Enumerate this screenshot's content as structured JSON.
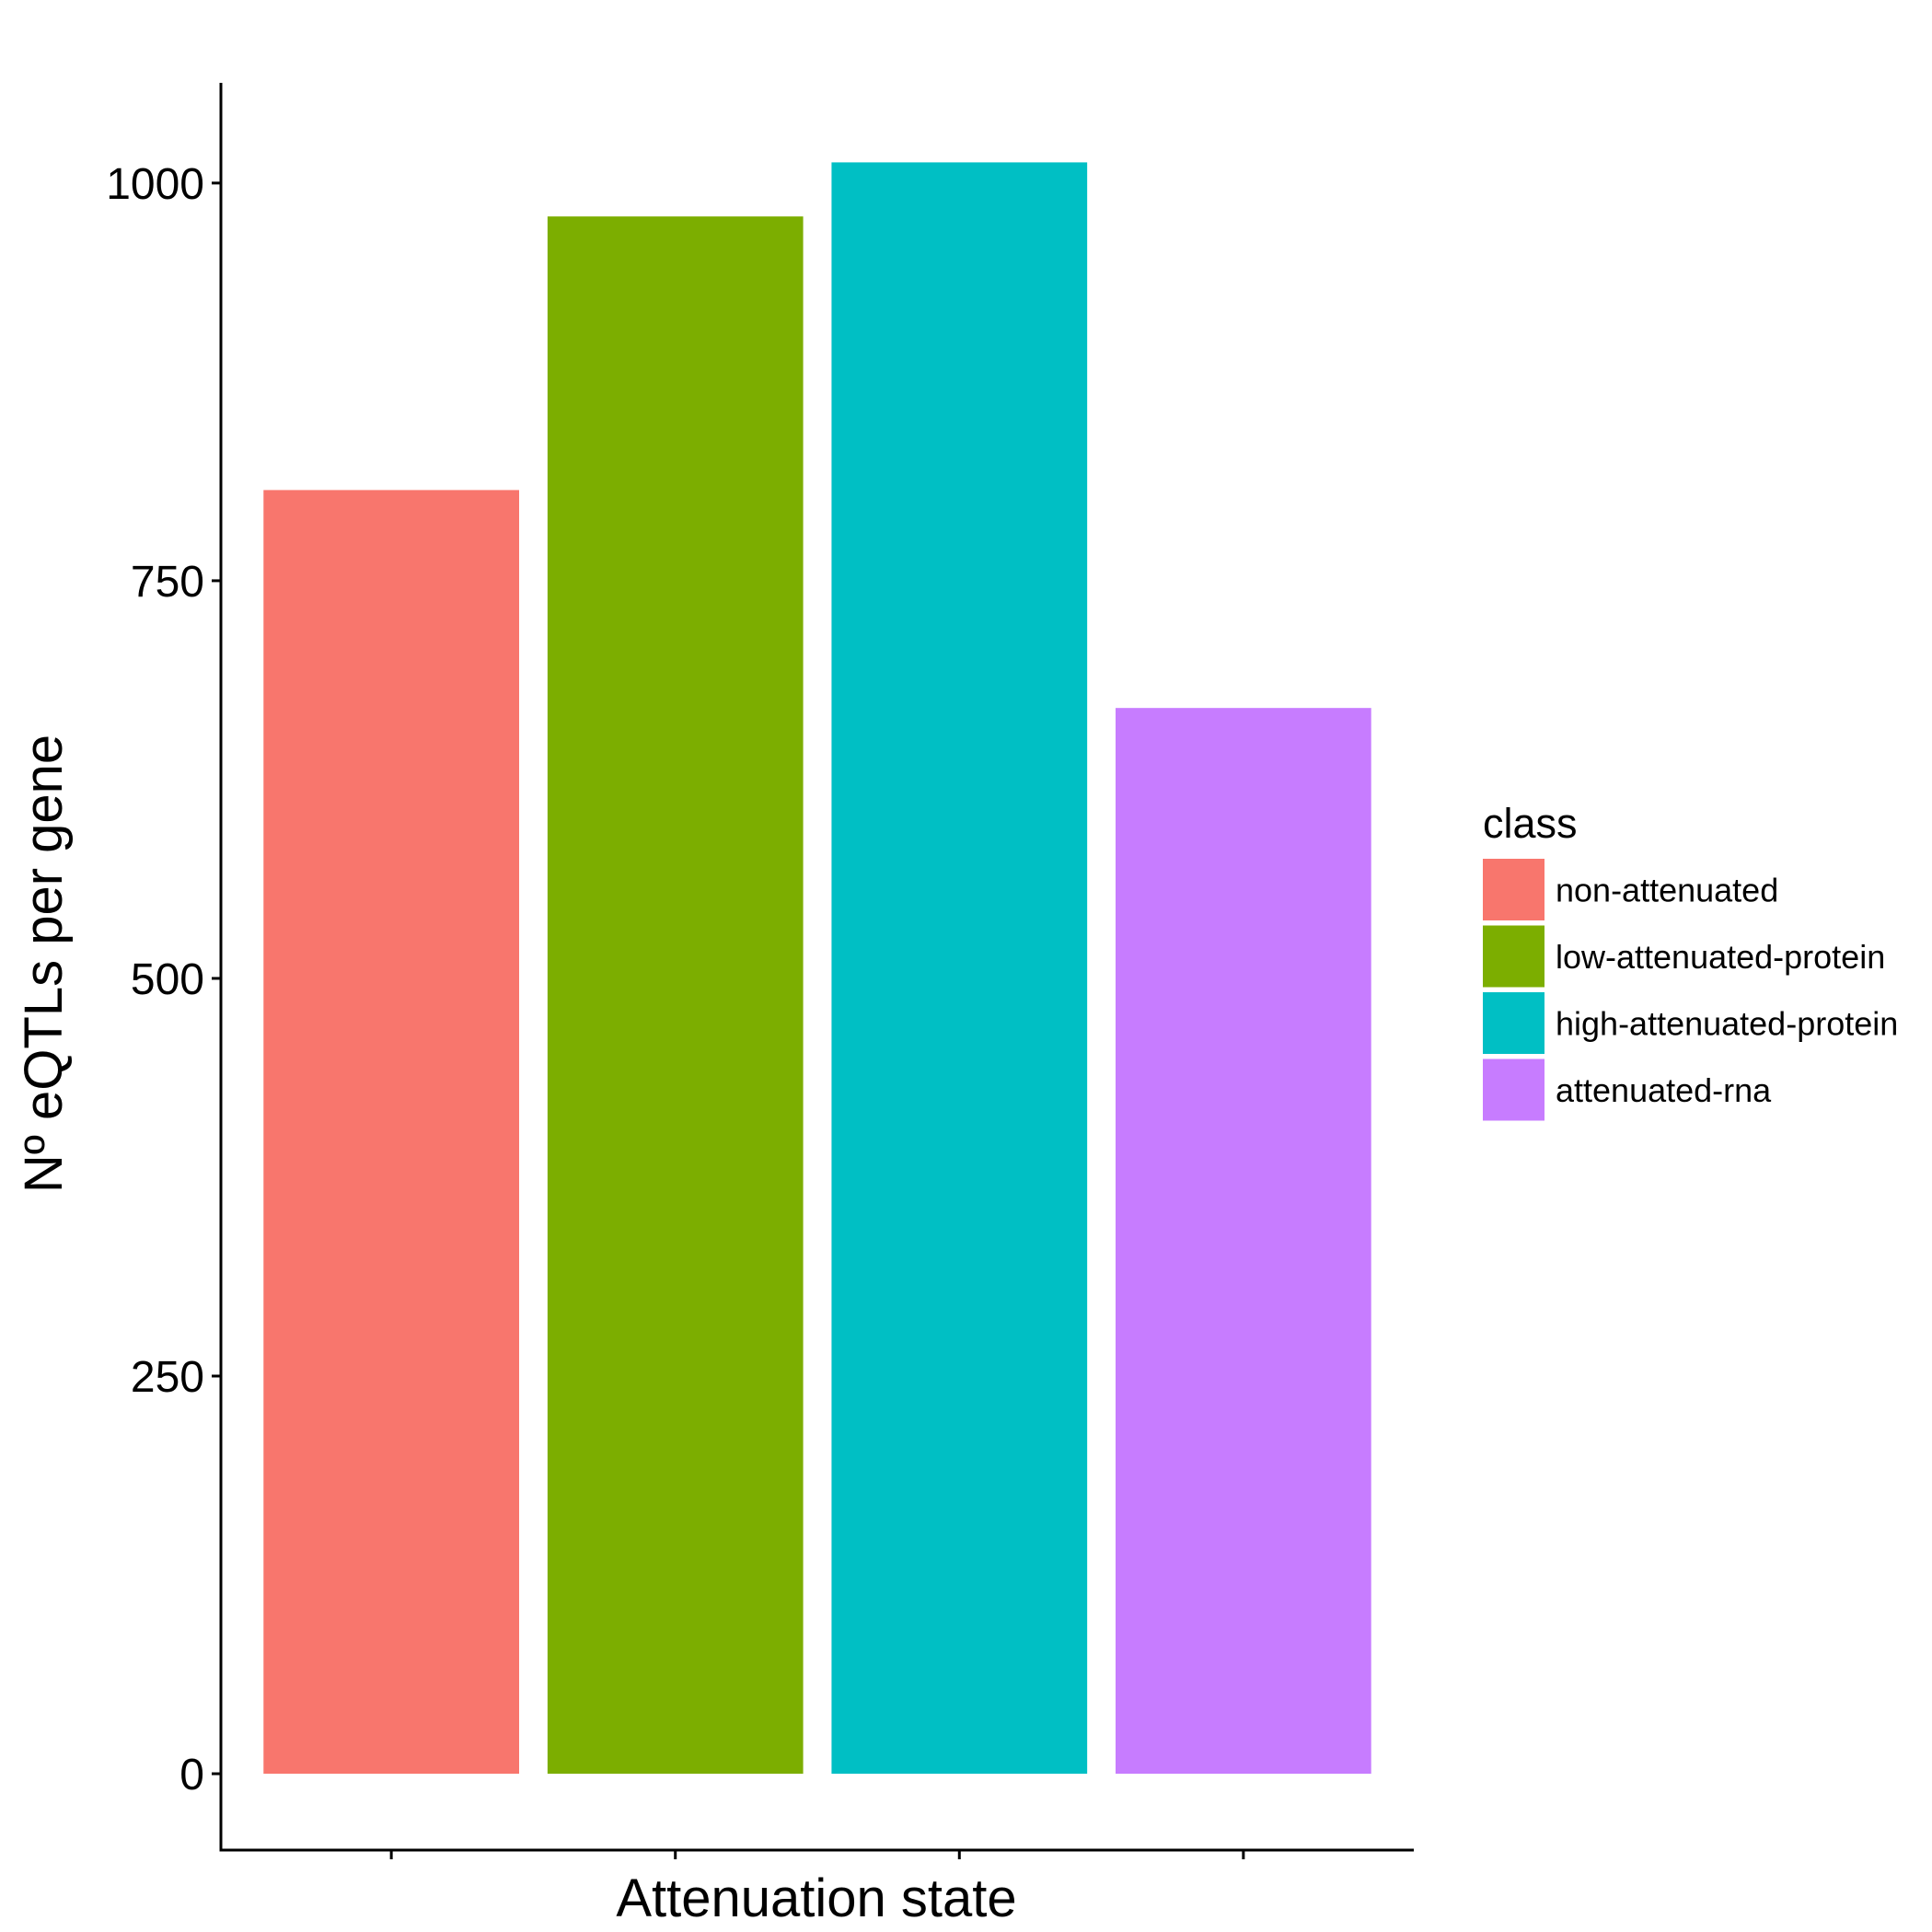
{
  "chart_data": {
    "type": "bar",
    "categories": [
      "non-attenuated",
      "low-attenuated-protein",
      "high-attenuated-protein",
      "attenuated-rna"
    ],
    "values": [
      807,
      979,
      1013,
      670
    ],
    "colors": [
      "#F8766D",
      "#7CAE00",
      "#00BFC4",
      "#C77CFF"
    ],
    "xlabel": "Attenuation state",
    "ylabel": "Nº eQTLs per gene",
    "ylim": [
      -48,
      1063
    ],
    "yticks": [
      0,
      250,
      500,
      750,
      1000
    ],
    "x_tick_labels_shown": false,
    "grid": false,
    "legend": {
      "title": "class",
      "position": "right",
      "entries": [
        "non-attenuated",
        "low-attenuated-protein",
        "high-attenuated-protein",
        "attenuated-rna"
      ]
    }
  }
}
